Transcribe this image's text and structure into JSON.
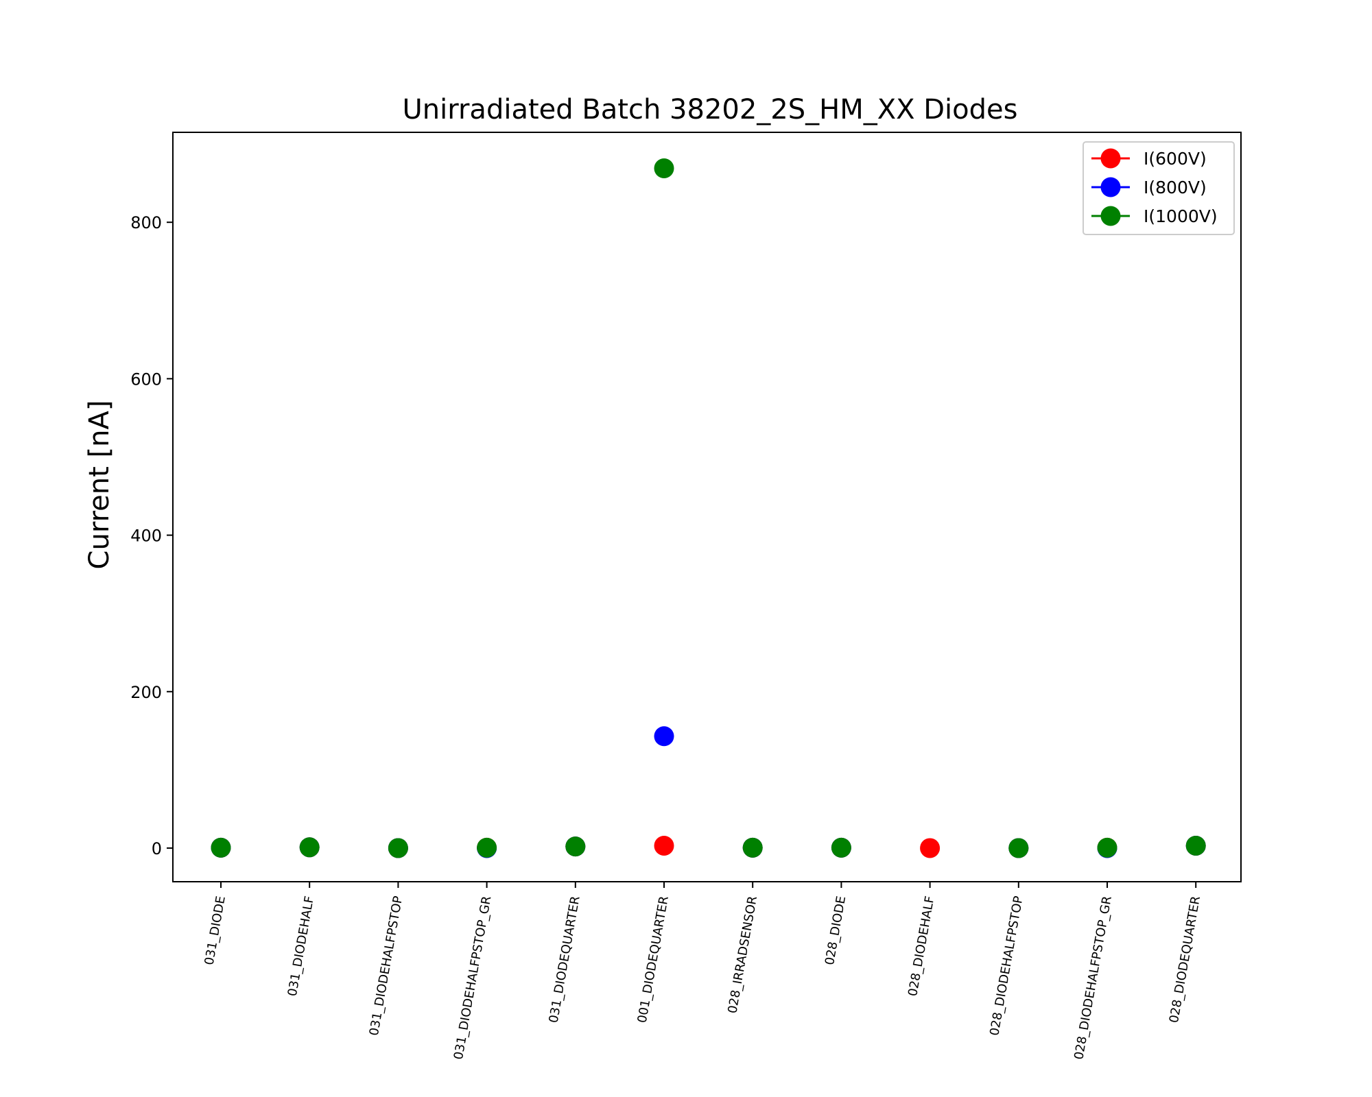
{
  "chart_data": {
    "type": "scatter",
    "title": "Unirradiated Batch 38202_2S_HM_XX Diodes",
    "xlabel": "",
    "ylabel": "Current [nA]",
    "categories": [
      "031_DIODE",
      "031_DIODEHALF",
      "031_DIODEHALFPSTOP",
      "031_DIODEHALFPSTOP_GR",
      "031_DIODEQUARTER",
      "001_DIODEQUARTER",
      "028_IRRADSENSOR",
      "028_DIODE",
      "028_DIODEHALF",
      "028_DIODEHALFPSTOP",
      "028_DIODEHALFPSTOP_GR",
      "028_DIODEQUARTER"
    ],
    "ylim": [
      -43,
      915
    ],
    "yticks": [
      0,
      200,
      400,
      600,
      800
    ],
    "grid": false,
    "legend_position": "top-right",
    "series": [
      {
        "name": "I(600V)",
        "color": "#ff0000",
        "values": [
          0.5,
          1,
          0,
          0.5,
          2,
          3,
          0.5,
          0.5,
          0,
          0,
          0.5,
          3
        ]
      },
      {
        "name": "I(800V)",
        "color": "#0000ff",
        "values": [
          0.5,
          1,
          0,
          0,
          2,
          143,
          0.5,
          0.5,
          null,
          0,
          0,
          3
        ]
      },
      {
        "name": "I(1000V)",
        "color": "#008000",
        "values": [
          0.5,
          1,
          0,
          0.5,
          2,
          869,
          0.5,
          0.5,
          null,
          0,
          0.5,
          3
        ]
      }
    ]
  }
}
